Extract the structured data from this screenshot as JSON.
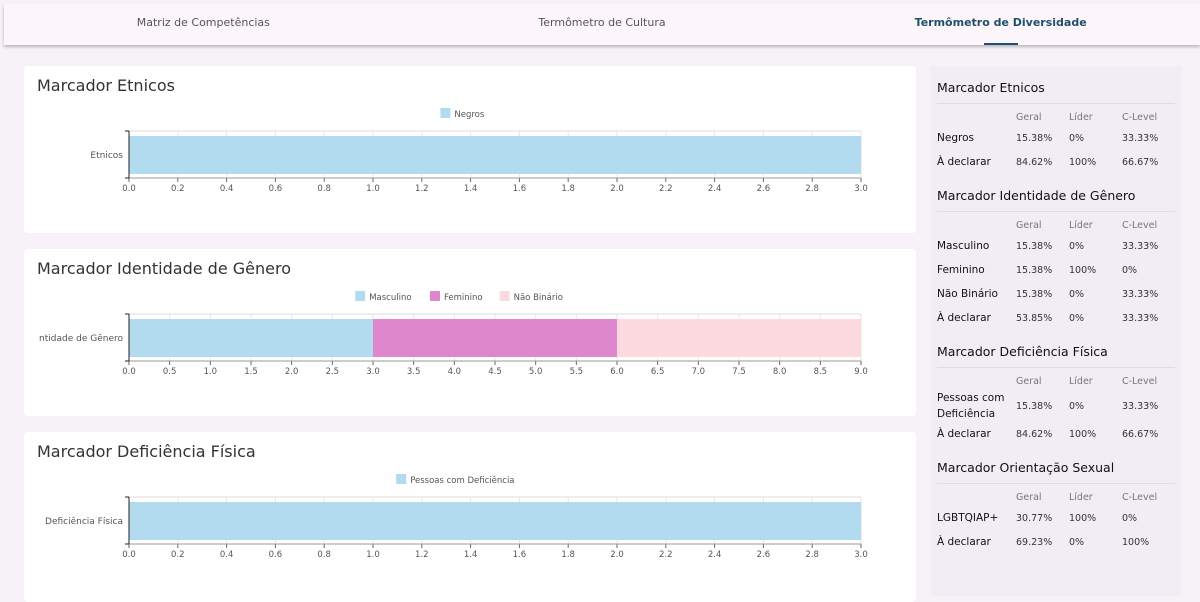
{
  "nav": {
    "tabs": [
      {
        "label": "Matriz de Competências",
        "active": false
      },
      {
        "label": "Termômetro de Cultura",
        "active": false
      },
      {
        "label": "Termômetro de Diversidade",
        "active": true
      }
    ]
  },
  "colors": {
    "Negros": "#b3dbef",
    "Masculino": "#b3dbef",
    "Feminino": "#de87cd",
    "Não Binário": "#fcdae0",
    "Pessoas com Deficiência": "#b3dbef"
  },
  "chart_data": [
    {
      "type": "bar",
      "orientation": "horizontal",
      "stacked": true,
      "title": "Marcador Etnicos",
      "categories": [
        "Etnicos"
      ],
      "series": [
        {
          "name": "Negros",
          "values": [
            3
          ]
        }
      ],
      "xlim": [
        0,
        3
      ],
      "xticks": [
        "0.0",
        "0.2",
        "0.4",
        "0.6",
        "0.8",
        "1.0",
        "1.2",
        "1.4",
        "1.6",
        "1.8",
        "2.0",
        "2.2",
        "2.4",
        "2.6",
        "2.8",
        "3.0"
      ],
      "legend": "top",
      "grid": true
    },
    {
      "type": "bar",
      "orientation": "horizontal",
      "stacked": true,
      "title": "Marcador Identidade de Gênero",
      "categories": [
        "Identidade de Gênero"
      ],
      "category_label_visible": "ntidade de Gênero",
      "series": [
        {
          "name": "Masculino",
          "values": [
            3
          ]
        },
        {
          "name": "Feminino",
          "values": [
            3
          ]
        },
        {
          "name": "Não Binário",
          "values": [
            3
          ]
        }
      ],
      "xlim": [
        0,
        9
      ],
      "xticks": [
        "0.0",
        "0.5",
        "1.0",
        "1.5",
        "2.0",
        "2.5",
        "3.0",
        "3.5",
        "4.0",
        "4.5",
        "5.0",
        "5.5",
        "6.0",
        "6.5",
        "7.0",
        "7.5",
        "8.0",
        "8.5",
        "9.0"
      ],
      "legend": "top",
      "grid": true
    },
    {
      "type": "bar",
      "orientation": "horizontal",
      "stacked": true,
      "title": "Marcador Deficiência Física",
      "categories": [
        "Deficiência Física"
      ],
      "series": [
        {
          "name": "Pessoas com Deficiência",
          "values": [
            3
          ]
        }
      ],
      "xlim": [
        0,
        3
      ],
      "xticks": [
        "0.0",
        "0.2",
        "0.4",
        "0.6",
        "0.8",
        "1.0",
        "1.2",
        "1.4",
        "1.6",
        "1.8",
        "2.0",
        "2.2",
        "2.4",
        "2.6",
        "2.8",
        "3.0"
      ],
      "legend": "top",
      "grid": true
    }
  ],
  "sidebar": {
    "headers": [
      "Geral",
      "Líder",
      "C-Level"
    ],
    "sections": [
      {
        "title": "Marcador Etnicos",
        "rows": [
          [
            "Negros",
            "15.38%",
            "0%",
            "33.33%"
          ],
          [
            "À declarar",
            "84.62%",
            "100%",
            "66.67%"
          ]
        ]
      },
      {
        "title": "Marcador Identidade de Gênero",
        "rows": [
          [
            "Masculino",
            "15.38%",
            "0%",
            "33.33%"
          ],
          [
            "Feminino",
            "15.38%",
            "100%",
            "0%"
          ],
          [
            "Não Binário",
            "15.38%",
            "0%",
            "33.33%"
          ],
          [
            "À declarar",
            "53.85%",
            "0%",
            "33.33%"
          ]
        ]
      },
      {
        "title": "Marcador Deficiência Física",
        "rows": [
          [
            "Pessoas com Deficiência",
            "15.38%",
            "0%",
            "33.33%"
          ],
          [
            "À declarar",
            "84.62%",
            "100%",
            "66.67%"
          ]
        ]
      },
      {
        "title": "Marcador Orientação Sexual",
        "rows": [
          [
            "LGBTQIAP+",
            "30.77%",
            "100%",
            "0%"
          ],
          [
            "À declarar",
            "69.23%",
            "0%",
            "100%"
          ]
        ]
      }
    ]
  }
}
